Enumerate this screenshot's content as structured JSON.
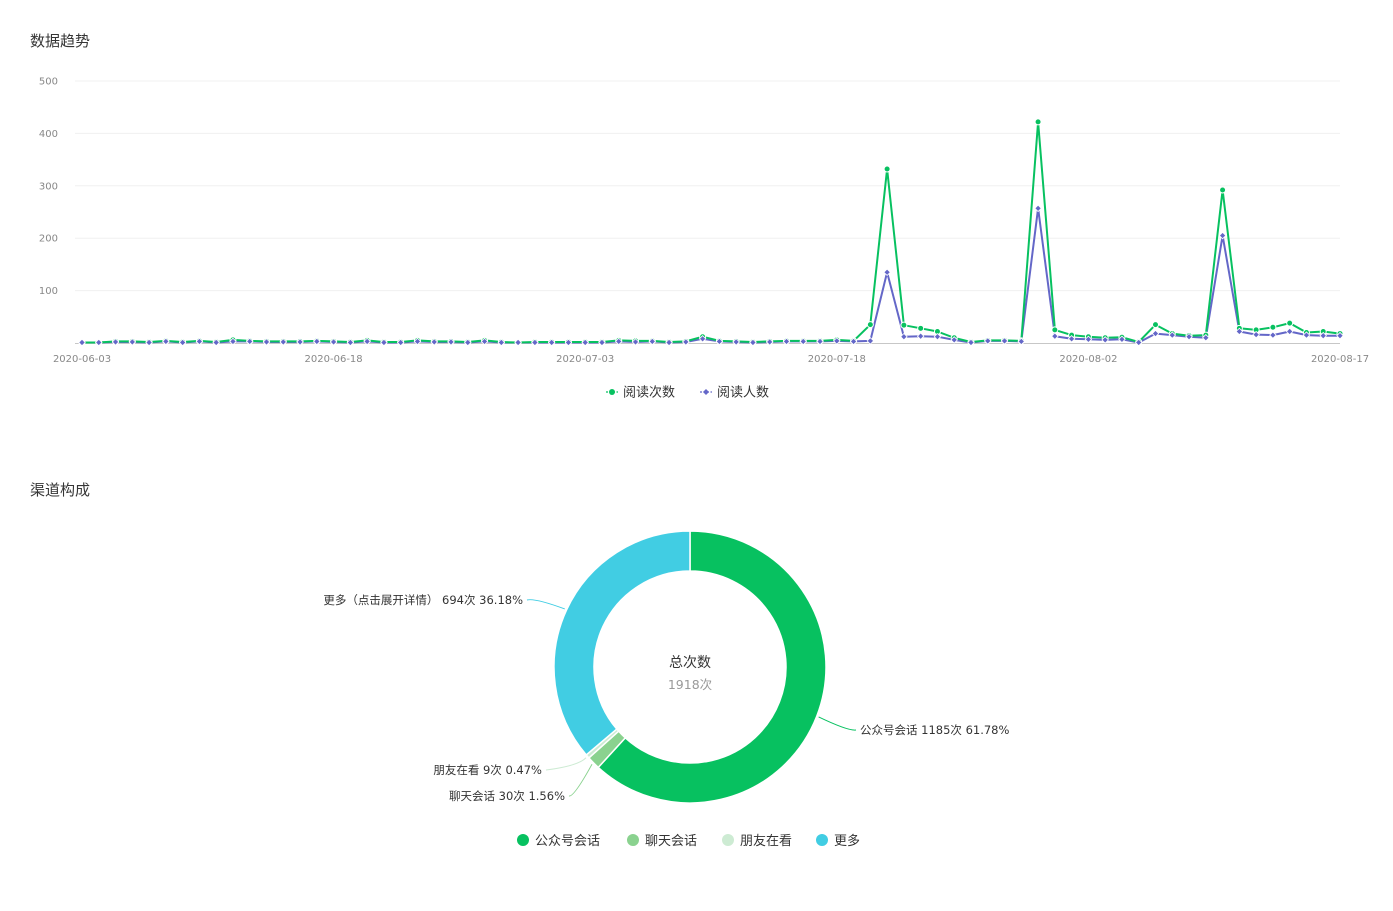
{
  "trend": {
    "title": "数据趋势",
    "chart_data": {
      "type": "line",
      "x": [
        "2020-06-03",
        "2020-06-04",
        "2020-06-05",
        "2020-06-06",
        "2020-06-07",
        "2020-06-08",
        "2020-06-09",
        "2020-06-10",
        "2020-06-11",
        "2020-06-12",
        "2020-06-13",
        "2020-06-14",
        "2020-06-15",
        "2020-06-16",
        "2020-06-17",
        "2020-06-18",
        "2020-06-19",
        "2020-06-20",
        "2020-06-21",
        "2020-06-22",
        "2020-06-23",
        "2020-06-24",
        "2020-06-25",
        "2020-06-26",
        "2020-06-27",
        "2020-06-28",
        "2020-06-29",
        "2020-06-30",
        "2020-07-01",
        "2020-07-02",
        "2020-07-03",
        "2020-07-04",
        "2020-07-05",
        "2020-07-06",
        "2020-07-07",
        "2020-07-08",
        "2020-07-09",
        "2020-07-10",
        "2020-07-11",
        "2020-07-12",
        "2020-07-13",
        "2020-07-14",
        "2020-07-15",
        "2020-07-16",
        "2020-07-17",
        "2020-07-18",
        "2020-07-19",
        "2020-07-20",
        "2020-07-21",
        "2020-07-22",
        "2020-07-23",
        "2020-07-24",
        "2020-07-25",
        "2020-07-26",
        "2020-07-27",
        "2020-07-28",
        "2020-07-29",
        "2020-07-30",
        "2020-07-31",
        "2020-08-01",
        "2020-08-02",
        "2020-08-03",
        "2020-08-04",
        "2020-08-05",
        "2020-08-06",
        "2020-08-07",
        "2020-08-08",
        "2020-08-09",
        "2020-08-10",
        "2020-08-11",
        "2020-08-12",
        "2020-08-13",
        "2020-08-14",
        "2020-08-15",
        "2020-08-16",
        "2020-08-17"
      ],
      "x_ticks": [
        "2020-06-03",
        "2020-06-18",
        "2020-07-03",
        "2020-07-18",
        "2020-08-02",
        "2020-08-17"
      ],
      "y_ticks": [
        100,
        200,
        300,
        400,
        500
      ],
      "ylim": [
        0,
        500
      ],
      "series": [
        {
          "name": "阅读次数",
          "color": "#07c160",
          "marker": "circle",
          "values": [
            1,
            1,
            3,
            3,
            2,
            4,
            2,
            4,
            2,
            6,
            4,
            3,
            3,
            3,
            4,
            3,
            2,
            5,
            2,
            2,
            5,
            3,
            3,
            2,
            5,
            2,
            1,
            2,
            2,
            2,
            2,
            2,
            5,
            4,
            4,
            2,
            3,
            12,
            4,
            3,
            2,
            3,
            4,
            4,
            4,
            6,
            4,
            35,
            332,
            34,
            28,
            22,
            10,
            2,
            5,
            5,
            4,
            422,
            25,
            15,
            12,
            10,
            11,
            2,
            35,
            18,
            14,
            15,
            292,
            28,
            25,
            30,
            38,
            20,
            22,
            18
          ]
        },
        {
          "name": "阅读人数",
          "color": "#6467c8",
          "marker": "diamond",
          "values": [
            1,
            1,
            2,
            2,
            1,
            3,
            1,
            3,
            1,
            3,
            3,
            2,
            2,
            2,
            3,
            2,
            1,
            3,
            1,
            1,
            3,
            2,
            2,
            1,
            3,
            1,
            1,
            1,
            1,
            1,
            1,
            1,
            3,
            2,
            3,
            1,
            2,
            8,
            3,
            2,
            1,
            2,
            3,
            3,
            3,
            4,
            3,
            4,
            135,
            12,
            13,
            12,
            6,
            1,
            4,
            4,
            3,
            257,
            13,
            8,
            7,
            6,
            7,
            1,
            18,
            15,
            12,
            10,
            205,
            22,
            16,
            15,
            22,
            15,
            14,
            14
          ]
        }
      ],
      "legend": "bottom-center",
      "grid": true
    }
  },
  "channels": {
    "title": "渠道构成",
    "center_title": "总次数",
    "center_value": "1918次",
    "chart_data": {
      "type": "pie",
      "variant": "donut",
      "total": 1918,
      "slices": [
        {
          "name": "公众号会话",
          "value": 1185,
          "percent": 61.78,
          "color": "#07c160",
          "label": "公众号会话 1185次 61.78%"
        },
        {
          "name": "聊天会话",
          "value": 30,
          "percent": 1.56,
          "color": "#8ad28f",
          "label": "聊天会话 30次 1.56%"
        },
        {
          "name": "朋友在看",
          "value": 9,
          "percent": 0.47,
          "color": "#cdebd3",
          "label": "朋友在看 9次 0.47%"
        },
        {
          "name": "更多",
          "value": 694,
          "percent": 36.18,
          "color": "#41cde3",
          "label": "更多（点击展开详情） 694次 36.18%"
        }
      ],
      "legend": "bottom-center"
    }
  }
}
